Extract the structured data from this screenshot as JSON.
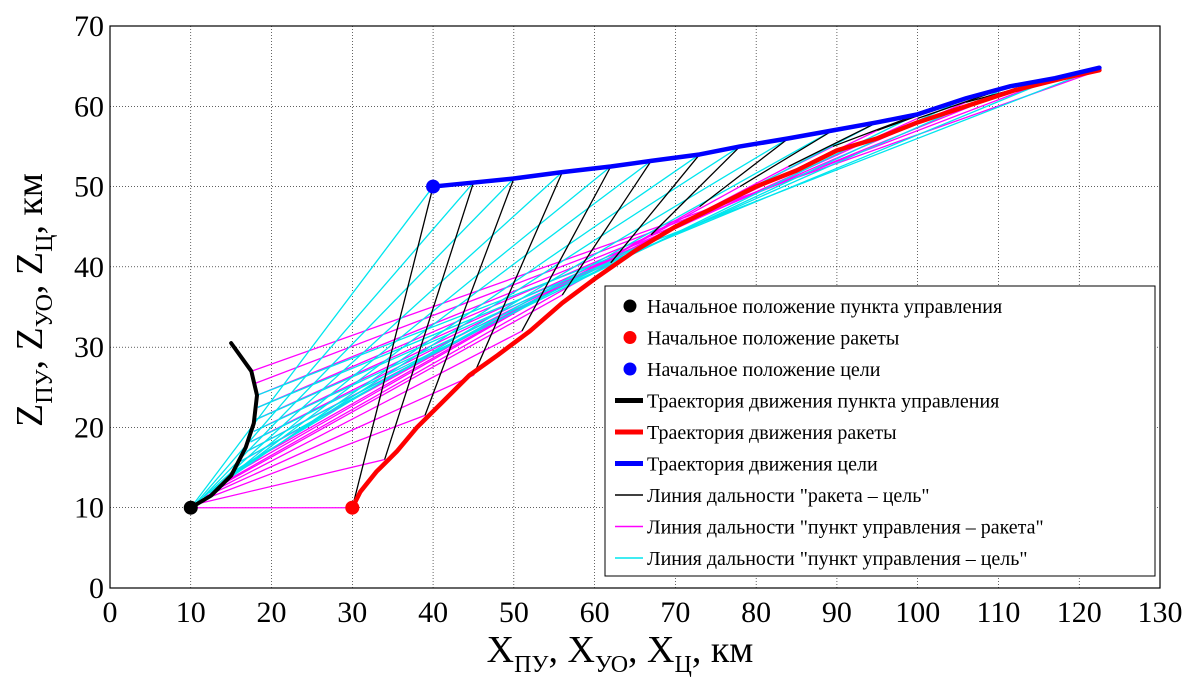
{
  "chart_data": {
    "type": "line",
    "xlabel": {
      "base": "X",
      "subs": [
        "ПУ",
        "УО",
        "Ц"
      ],
      "unit": "км"
    },
    "ylabel": {
      "base": "Z",
      "subs": [
        "ПУ",
        "УО",
        "Ц"
      ],
      "unit": "км"
    },
    "xlim": [
      0,
      130
    ],
    "ylim": [
      0,
      70
    ],
    "xticks": [
      "0",
      "10",
      "20",
      "30",
      "40",
      "50",
      "60",
      "70",
      "80",
      "90",
      "100",
      "110",
      "120",
      "130"
    ],
    "yticks": [
      "0",
      "10",
      "20",
      "30",
      "40",
      "50",
      "60",
      "70"
    ],
    "grid": true,
    "legend_position": "lower-right",
    "legend": [
      {
        "label": "Начальное положение пункта управления",
        "kind": "marker",
        "color": "#000000"
      },
      {
        "label": "Начальное положение ракеты",
        "kind": "marker",
        "color": "#ff0000"
      },
      {
        "label": "Начальное положение цели",
        "kind": "marker",
        "color": "#0000ff"
      },
      {
        "label": "Траектория движения пункта управления",
        "kind": "thick",
        "color": "#000000"
      },
      {
        "label": "Траектория движения ракеты",
        "kind": "thick",
        "color": "#ff0000"
      },
      {
        "label": "Траектория движения цели",
        "kind": "thick",
        "color": "#0000ff"
      },
      {
        "label": "Линия дальности \"ракета – цель\"",
        "kind": "thin",
        "color": "#000000"
      },
      {
        "label": "Линия дальности \"пункт управления – ракета\"",
        "kind": "thin",
        "color": "#ff00ff"
      },
      {
        "label": "Линия дальности \"пункт управления – цель\"",
        "kind": "thin",
        "color": "#00e5ee"
      }
    ],
    "start_points": {
      "control_point": [
        10,
        10
      ],
      "missile": [
        30,
        10
      ],
      "target": [
        40,
        50
      ]
    },
    "control_point_trajectory": [
      [
        10,
        10
      ],
      [
        12.5,
        11.5
      ],
      [
        15,
        14
      ],
      [
        16.8,
        17.5
      ],
      [
        17.8,
        20.5
      ],
      [
        18.2,
        24
      ],
      [
        17.5,
        27
      ],
      [
        15,
        30.5
      ]
    ],
    "missile_trajectory": [
      [
        30,
        10
      ],
      [
        31,
        12
      ],
      [
        33,
        14.5
      ],
      [
        35.5,
        17
      ],
      [
        38,
        20
      ],
      [
        41,
        23
      ],
      [
        44.5,
        26.5
      ],
      [
        48,
        29
      ],
      [
        52,
        32
      ],
      [
        56,
        35.5
      ],
      [
        60,
        38.5
      ],
      [
        65,
        42
      ],
      [
        70,
        45
      ],
      [
        75,
        47.5
      ],
      [
        80,
        50
      ],
      [
        85,
        52
      ],
      [
        90,
        54.5
      ],
      [
        95,
        56
      ],
      [
        100,
        58
      ],
      [
        106,
        60
      ],
      [
        112,
        62
      ],
      [
        118,
        63.5
      ],
      [
        122.5,
        64.5
      ]
    ],
    "target_trajectory": [
      [
        40,
        50
      ],
      [
        45,
        50.5
      ],
      [
        50,
        51
      ],
      [
        56,
        51.8
      ],
      [
        62,
        52.5
      ],
      [
        67,
        53.2
      ],
      [
        73,
        54
      ],
      [
        78,
        55
      ],
      [
        84,
        56
      ],
      [
        89.5,
        57
      ],
      [
        95,
        58
      ],
      [
        100,
        59
      ],
      [
        106,
        61
      ],
      [
        111.5,
        62.5
      ],
      [
        117,
        63.5
      ],
      [
        122.5,
        64.8
      ]
    ],
    "segment_steps": {
      "control_point": [
        [
          10,
          10
        ],
        [
          10.5,
          10.4
        ],
        [
          11,
          10.8
        ],
        [
          11.6,
          11.3
        ],
        [
          12.3,
          11.8
        ],
        [
          13,
          12.4
        ],
        [
          13.8,
          13
        ],
        [
          14.6,
          13.8
        ],
        [
          15.4,
          14.6
        ],
        [
          16.2,
          15.8
        ],
        [
          16.9,
          17
        ],
        [
          17.4,
          18.2
        ],
        [
          17.8,
          19.5
        ],
        [
          18.1,
          21
        ],
        [
          18.3,
          22.5
        ],
        [
          18.2,
          24
        ],
        [
          18,
          25.5
        ],
        [
          17.5,
          27
        ],
        [
          16.8,
          28.5
        ],
        [
          15,
          30.5
        ]
      ],
      "missile": [
        [
          30,
          10
        ],
        [
          34,
          16
        ],
        [
          39,
          21.5
        ],
        [
          45,
          26.5
        ],
        [
          51,
          32
        ],
        [
          56,
          36.5
        ],
        [
          62,
          40.5
        ],
        [
          67,
          44
        ],
        [
          73,
          47.5
        ],
        [
          78,
          50
        ],
        [
          84,
          52.5
        ],
        [
          89.5,
          55
        ],
        [
          95,
          57
        ],
        [
          100,
          58.5
        ],
        [
          106,
          60.5
        ],
        [
          111.5,
          62
        ],
        [
          117,
          63.5
        ],
        [
          122.5,
          64.5
        ]
      ],
      "target": [
        [
          40,
          50
        ],
        [
          45,
          50.5
        ],
        [
          50,
          51
        ],
        [
          56,
          51.8
        ],
        [
          62,
          52.5
        ],
        [
          67,
          53.2
        ],
        [
          73,
          54
        ],
        [
          78,
          55
        ],
        [
          84,
          56
        ],
        [
          89.5,
          57
        ],
        [
          95,
          58
        ],
        [
          100,
          59
        ],
        [
          106,
          61
        ],
        [
          111.5,
          62.5
        ],
        [
          117,
          63.5
        ],
        [
          122.5,
          64.8
        ]
      ]
    },
    "colors": {
      "grid": "#000000",
      "control_point": "#000000",
      "missile": "#ff0000",
      "target": "#0000ff",
      "range_missile_target": "#000000",
      "range_cp_missile": "#ff00ff",
      "range_cp_target": "#00e5ee"
    }
  }
}
